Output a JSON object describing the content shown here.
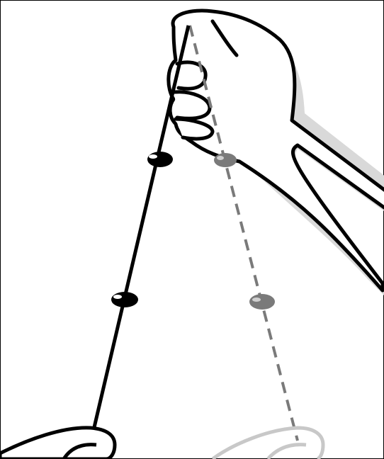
{
  "illustration": {
    "subject": "hand-holding-string-with-beads",
    "colors": {
      "ink": "#000000",
      "ghost": "#7a7a7a",
      "ghost_light": "#c8c8c8",
      "shadow": "#d9d9d9",
      "paper": "#ffffff"
    }
  }
}
